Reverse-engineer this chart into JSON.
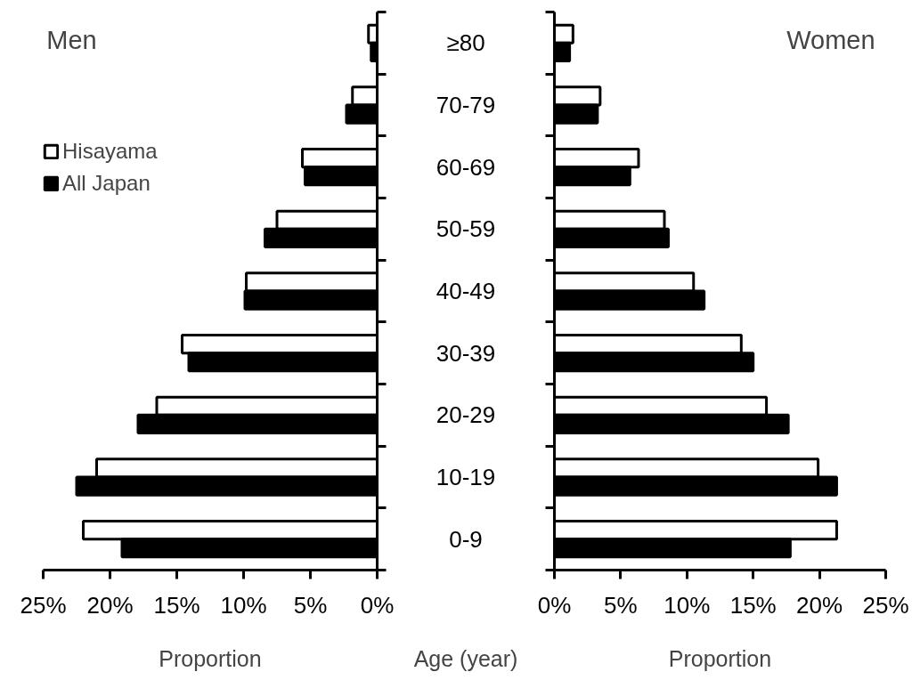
{
  "chart_data": [
    {
      "type": "bar",
      "orientation": "horizontal",
      "title": "Men",
      "xlabel": "Proportion",
      "categories": [
        null,
        null,
        null,
        null,
        null,
        null,
        null,
        null,
        null
      ],
      "series": [
        {
          "name": "Hisayama",
          "color": "#ffffff",
          "values": [
            0.65,
            1.85,
            5.6,
            7.5,
            9.8,
            14.6,
            16.5,
            21.0,
            22.0
          ]
        },
        {
          "name": "All Japan",
          "color": "#000000",
          "values": [
            0.45,
            2.3,
            5.4,
            8.4,
            9.9,
            14.1,
            17.9,
            22.5,
            19.1
          ]
        }
      ],
      "xlim": [
        25,
        0
      ],
      "xticks": [
        {
          "value": 25,
          "label": "25%"
        },
        {
          "value": 20,
          "label": "20%"
        },
        {
          "value": 15,
          "label": "15%"
        },
        {
          "value": 10,
          "label": "10%"
        },
        {
          "value": 5,
          "label": "5%"
        },
        {
          "value": 0,
          "label": "0%"
        }
      ],
      "grid": false,
      "legend": "top left",
      "tick_labels": "x"
    },
    {
      "type": "bar",
      "orientation": "horizontal",
      "title": "Women",
      "xlabel": "Proportion",
      "ylabel": "Age (year)",
      "categories": [
        "≥80",
        "70-79",
        "60-69",
        "50-59",
        "40-49",
        "30-39",
        "20-29",
        "10-19",
        "0-9"
      ],
      "series": [
        {
          "color": "#ffffff",
          "values": [
            1.4,
            3.45,
            6.35,
            8.3,
            10.5,
            14.1,
            16.0,
            19.9,
            21.3
          ]
        },
        {
          "color": "#000000",
          "values": [
            1.15,
            3.25,
            5.7,
            8.6,
            11.3,
            15.0,
            17.65,
            21.3,
            17.8
          ]
        }
      ],
      "xlim": [
        0,
        25
      ],
      "xticks": [
        {
          "value": 0,
          "label": "0%"
        },
        {
          "value": 5,
          "label": "5%"
        },
        {
          "value": 10,
          "label": "10%"
        },
        {
          "value": 15,
          "label": "15%"
        },
        {
          "value": 20,
          "label": "20%"
        },
        {
          "value": 25,
          "label": "25%"
        }
      ],
      "grid": false,
      "legend": false
    }
  ]
}
